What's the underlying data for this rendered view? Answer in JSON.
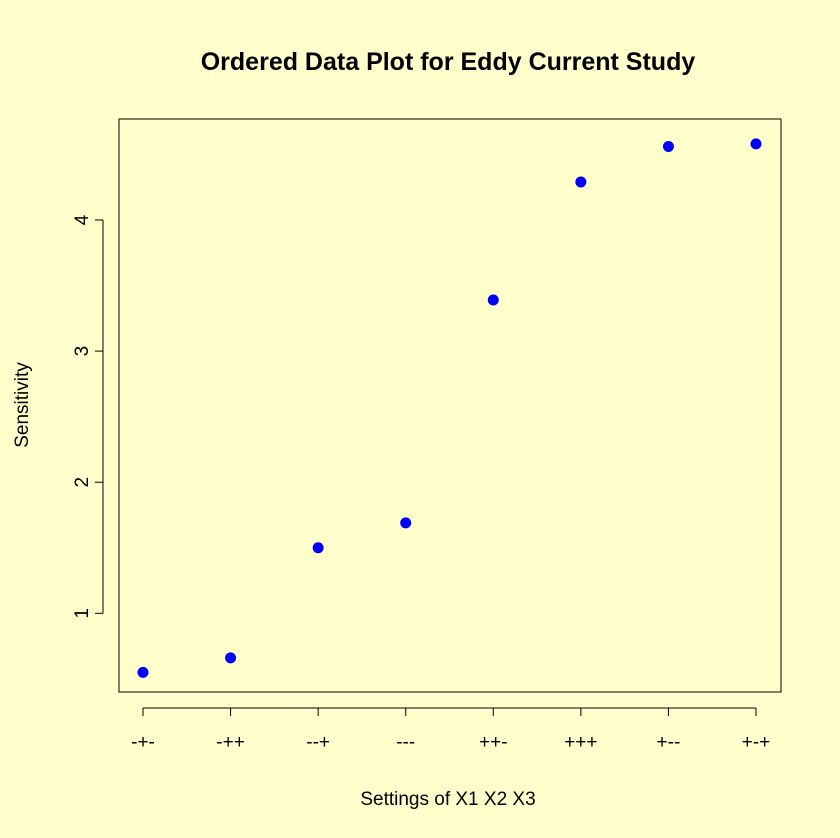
{
  "chart_data": {
    "type": "scatter",
    "title": "Ordered Data Plot for Eddy Current Study",
    "xlabel": "Settings of X1 X2 X3",
    "ylabel": "Sensitivity",
    "categories": [
      "-+-",
      "-++",
      "--+",
      "---",
      "++-",
      "+++",
      "+--",
      "+-+"
    ],
    "values": [
      0.55,
      0.66,
      1.5,
      1.69,
      3.39,
      4.29,
      4.56,
      4.58
    ],
    "ylim": [
      0.4,
      4.77
    ],
    "yticks": [
      1,
      2,
      3,
      4
    ],
    "point_color": "#0000ff",
    "grid": false
  }
}
